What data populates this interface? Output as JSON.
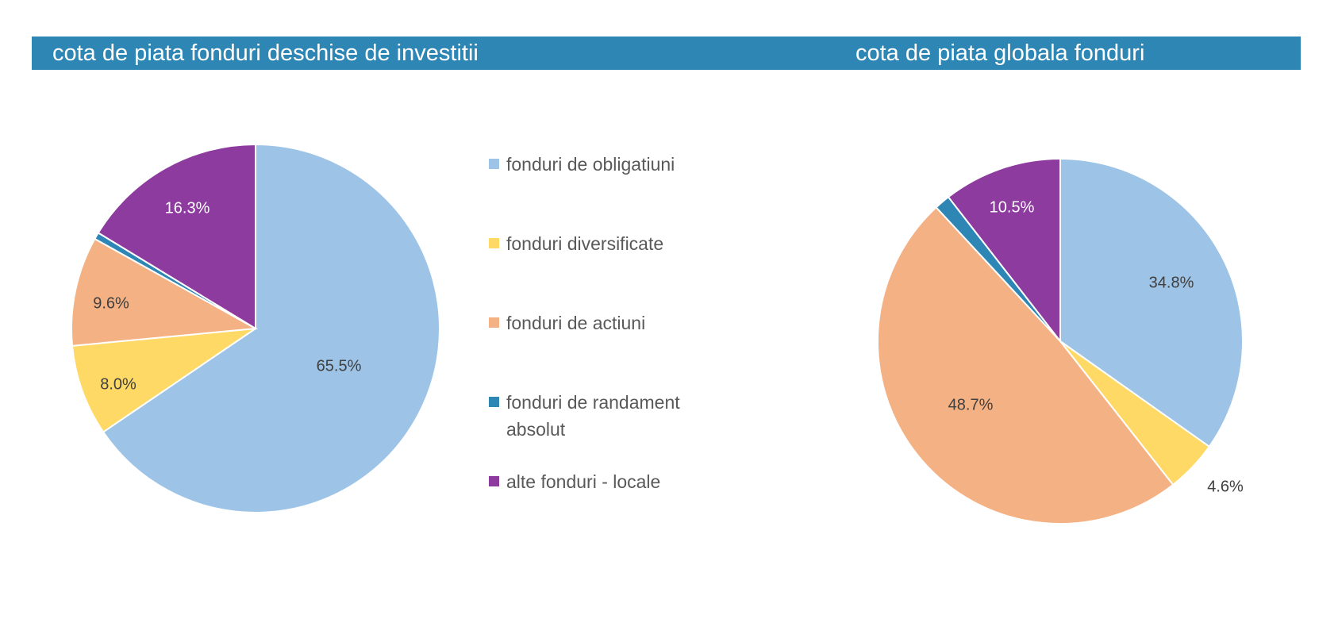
{
  "header": {
    "left_title": "cota de piata fonduri deschise de investitii",
    "right_title": "cota de piata globala fonduri",
    "color": "#2e86b4"
  },
  "legend": {
    "items": [
      {
        "label": "fonduri de obligatiuni",
        "color": "#9dc3e6"
      },
      {
        "label": "fonduri diversificate",
        "color": "#ffd966"
      },
      {
        "label": "fonduri de actiuni",
        "color": "#f4b183"
      },
      {
        "label": "fonduri de randament absolut",
        "color": "#2e86b4"
      },
      {
        "label": "alte fonduri - locale",
        "color": "#8e3b9f"
      }
    ]
  },
  "chart_data": [
    {
      "type": "pie",
      "title": "cota de piata fonduri deschise de investitii",
      "labels": [
        "fonduri de obligatiuni",
        "fonduri diversificate",
        "fonduri de actiuni",
        "fonduri de randament absolut",
        "alte fonduri - locale"
      ],
      "values": [
        65.5,
        8.0,
        9.6,
        0.6,
        16.3
      ],
      "data_labels": [
        "65.5%",
        "8.0%",
        "9.6%",
        "",
        "16.3%"
      ],
      "colors": [
        "#9dc3e6",
        "#ffd966",
        "#f4b183",
        "#2e86b4",
        "#8e3b9f"
      ],
      "legend": "right"
    },
    {
      "type": "pie",
      "title": "cota de piata globala fonduri",
      "labels": [
        "fonduri de obligatiuni",
        "fonduri diversificate",
        "fonduri de actiuni",
        "fonduri de randament absolut",
        "alte fonduri - locale"
      ],
      "values": [
        34.8,
        4.6,
        48.7,
        1.4,
        10.5
      ],
      "data_labels": [
        "34.8%",
        "4.6%",
        "48.7%",
        "",
        "10.5%"
      ],
      "colors": [
        "#9dc3e6",
        "#ffd966",
        "#f4b183",
        "#2e86b4",
        "#8e3b9f"
      ],
      "legend": "none"
    }
  ]
}
